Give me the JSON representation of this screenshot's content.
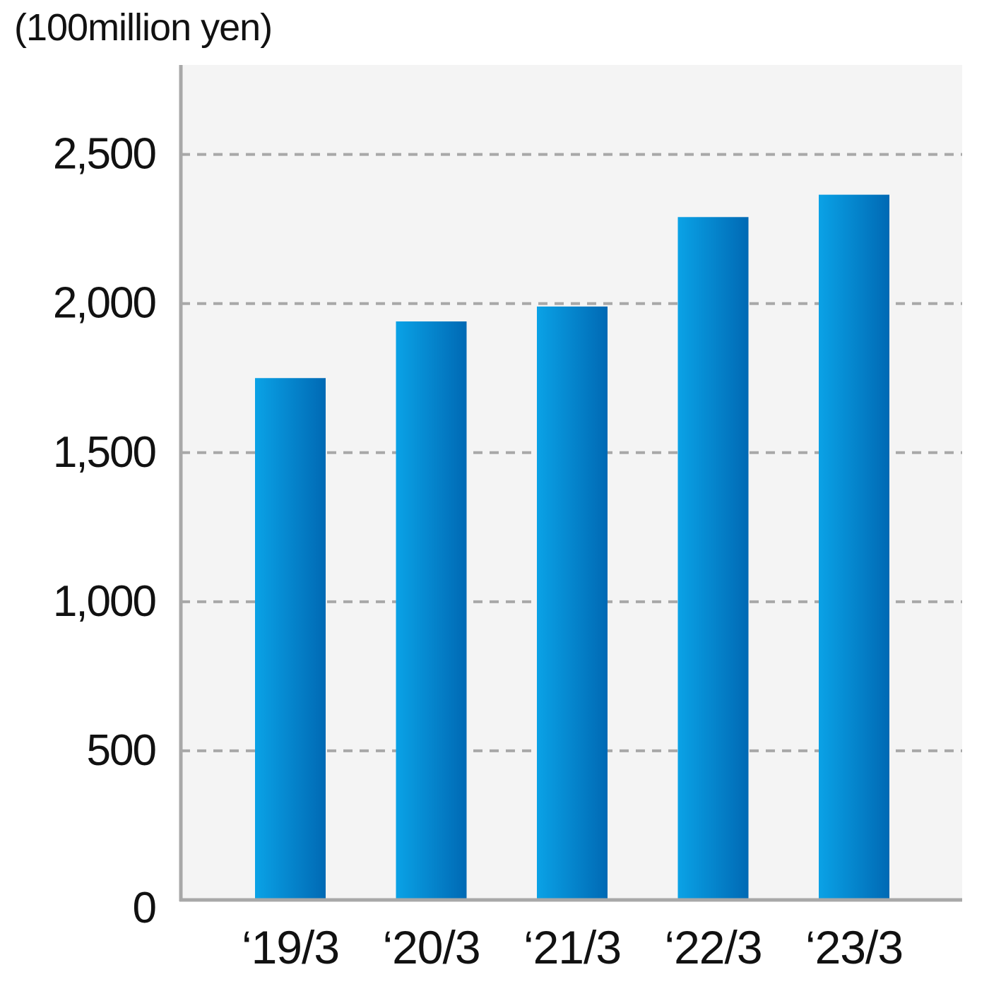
{
  "chart_data": {
    "type": "bar",
    "unit_label": "(100million yen)",
    "categories": [
      "‘19/3",
      "‘20/3",
      "‘21/3",
      "‘22/3",
      "‘23/3"
    ],
    "values": [
      1750,
      1940,
      1990,
      2290,
      2365
    ],
    "y_ticks": [
      0,
      500,
      1000,
      1500,
      2000,
      2500
    ],
    "y_tick_labels": [
      "0",
      "500",
      "1,000",
      "1,500",
      "2,000",
      "2,500"
    ],
    "ylim": [
      0,
      2800
    ],
    "grid": true,
    "grid_style": "dashed",
    "legend": "none",
    "colors": {
      "bar_light": "#0aa2e6",
      "bar_dark": "#0069b4",
      "plot_background": "#f4f4f4",
      "axis": "#a8a8a8",
      "grid": "#a8a8a8",
      "text": "#111111"
    }
  }
}
